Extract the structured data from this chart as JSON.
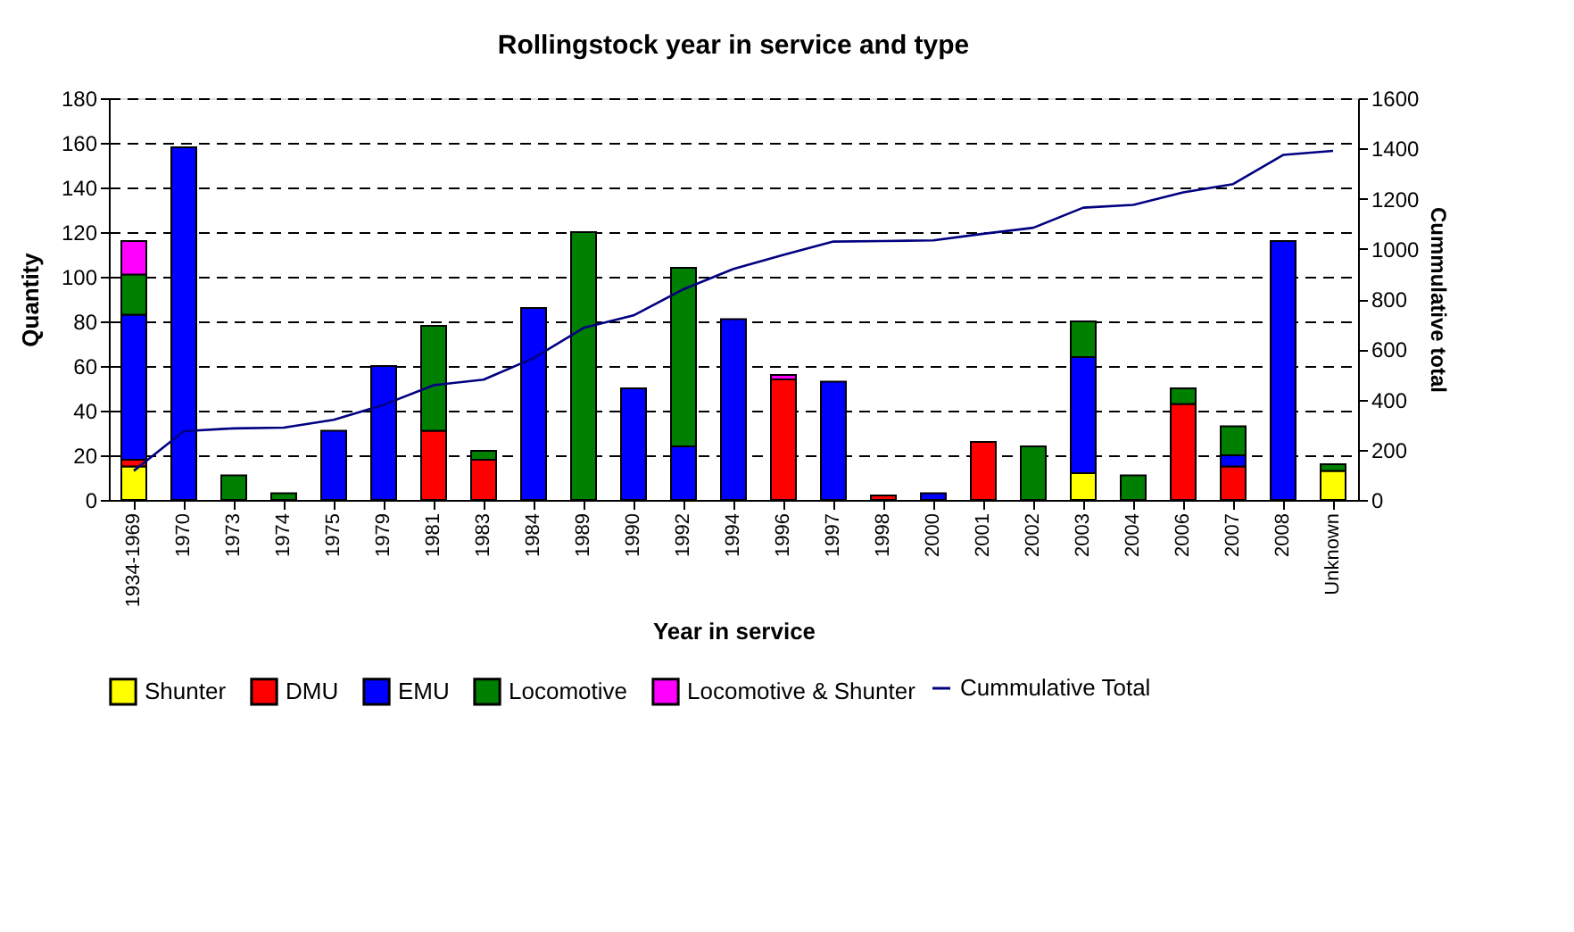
{
  "chart_data": {
    "type": "bar",
    "title": "Rollingstock year in service and type",
    "xlabel": "Year in service",
    "ylabel": "Quantity",
    "y2label": "Cummulative total",
    "categories": [
      "1934-1969",
      "1970",
      "1973",
      "1974",
      "1975",
      "1979",
      "1981",
      "1983",
      "1984",
      "1989",
      "1990",
      "1992",
      "1994",
      "1996",
      "1997",
      "1998",
      "2000",
      "2001",
      "2002",
      "2003",
      "2004",
      "2006",
      "2007",
      "2008",
      "Unknown"
    ],
    "stacked": true,
    "series": [
      {
        "name": "Shunter",
        "color": "#ffff00",
        "values": [
          15,
          null,
          null,
          null,
          null,
          null,
          null,
          null,
          null,
          null,
          null,
          null,
          null,
          null,
          null,
          null,
          null,
          null,
          null,
          12,
          null,
          null,
          null,
          null,
          13
        ]
      },
      {
        "name": "DMU",
        "color": "#ff0000",
        "values": [
          3,
          null,
          null,
          null,
          null,
          null,
          31,
          18,
          null,
          null,
          null,
          null,
          null,
          54,
          null,
          2,
          null,
          26,
          null,
          null,
          null,
          43,
          15,
          null,
          null
        ]
      },
      {
        "name": "EMU",
        "color": "#0000ff",
        "values": [
          65,
          158,
          null,
          null,
          31,
          60,
          null,
          null,
          86,
          null,
          50,
          24,
          81,
          null,
          53,
          null,
          3,
          null,
          null,
          52,
          null,
          null,
          5,
          116,
          null
        ]
      },
      {
        "name": "Locomotive",
        "color": "#008000",
        "values": [
          18,
          null,
          11,
          3,
          null,
          null,
          47,
          4,
          null,
          120,
          null,
          80,
          null,
          null,
          null,
          null,
          null,
          null,
          24,
          16,
          11,
          7,
          13,
          null,
          3
        ]
      },
      {
        "name": "Locomotive & Shunter",
        "color": "#ff00ff",
        "values": [
          15,
          null,
          null,
          null,
          null,
          null,
          null,
          null,
          null,
          null,
          null,
          null,
          null,
          2,
          null,
          null,
          null,
          null,
          null,
          null,
          null,
          null,
          null,
          null,
          null
        ]
      },
      {
        "name": "Cummulative Total",
        "color": "#000080",
        "type": "line",
        "axis": "y2",
        "values": [
          116,
          274,
          285,
          288,
          319,
          379,
          457,
          479,
          565,
          685,
          735,
          839,
          920,
          976,
          1029,
          1031,
          1034,
          1060,
          1084,
          1164,
          1175,
          1225,
          1258,
          1374,
          1390
        ]
      }
    ],
    "ylim": [
      0,
      180
    ],
    "yticks": [
      0,
      20,
      40,
      60,
      80,
      100,
      120,
      140,
      160,
      180
    ],
    "y2lim": [
      0,
      1600
    ],
    "y2ticks": [
      0,
      200,
      400,
      600,
      800,
      1000,
      1200,
      1400,
      1600
    ],
    "grid": "y",
    "legend": "bottom",
    "marker": "none",
    "line_style": "solid"
  }
}
